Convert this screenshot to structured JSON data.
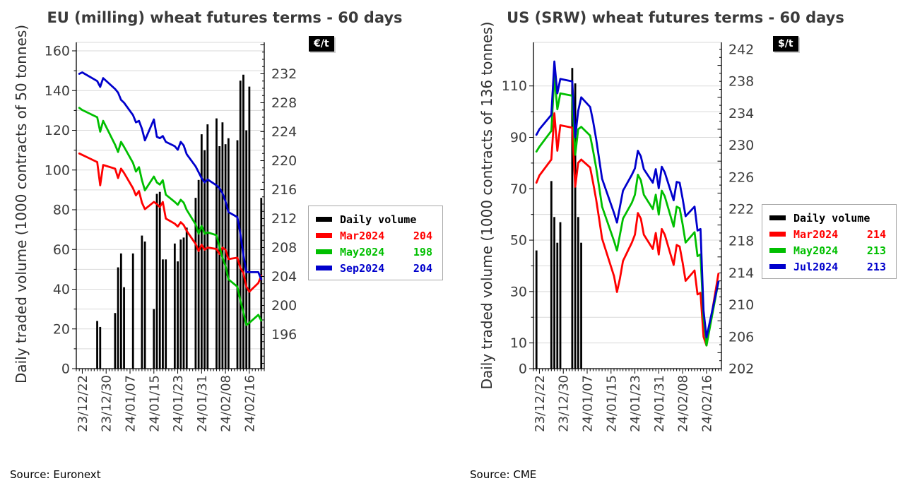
{
  "chart_data": [
    {
      "type": "line+bar",
      "title": "EU (milling) wheat futures terms - 60 days",
      "unit_badge": "€/t",
      "source": "Source: Euronext",
      "ylabel_left": "Daily traded volume (1000 contracts of 50 tonnes)",
      "y_left_ticks": [
        0,
        20,
        40,
        60,
        80,
        100,
        120,
        140,
        160
      ],
      "y_left_range": [
        0,
        164
      ],
      "y_right_ticks": [
        196,
        200,
        204,
        208,
        212,
        216,
        220,
        224,
        228,
        232
      ],
      "y_right_range": [
        192,
        236
      ],
      "x_tick_labels": [
        "23/12/22",
        "23/12/30",
        "24/01/07",
        "24/01/15",
        "24/01/23",
        "24/01/31",
        "24/02/08",
        "24/02/16"
      ],
      "grid": true,
      "legend_position": "right-middle",
      "legend": [
        {
          "label": "Daily volume",
          "value": "",
          "color": "#000000"
        },
        {
          "label": "Mar2024",
          "value": "204",
          "color": "#ff0000"
        },
        {
          "label": "May2024",
          "value": "198",
          "color": "#00bf00"
        },
        {
          "label": "Sep2024",
          "value": "204",
          "color": "#0000cc"
        }
      ],
      "dates": [
        "23/12/21",
        "23/12/22",
        "23/12/27",
        "23/12/28",
        "23/12/29",
        "24/01/02",
        "24/01/03",
        "24/01/04",
        "24/01/05",
        "24/01/08",
        "24/01/09",
        "24/01/10",
        "24/01/11",
        "24/01/12",
        "24/01/15",
        "24/01/16",
        "24/01/17",
        "24/01/18",
        "24/01/19",
        "24/01/22",
        "24/01/23",
        "24/01/24",
        "24/01/25",
        "24/01/26",
        "24/01/29",
        "24/01/30",
        "24/01/31",
        "24/02/01",
        "24/02/02",
        "24/02/05",
        "24/02/06",
        "24/02/07",
        "24/02/08",
        "24/02/09",
        "24/02/12",
        "24/02/13",
        "24/02/14",
        "24/02/15",
        "24/02/16",
        "24/02/19",
        "24/02/20"
      ],
      "volume": {
        "name": "Daily volume",
        "color": "#000000",
        "values": [
          0,
          0,
          24,
          21,
          0,
          28,
          51,
          58,
          41,
          58,
          0,
          0,
          67,
          64,
          30,
          88,
          89,
          55,
          55,
          63,
          54,
          65,
          66,
          71,
          86,
          95,
          118,
          110,
          123,
          126,
          112,
          124,
          113,
          116,
          115,
          145,
          148,
          120,
          142,
          0,
          86
        ]
      },
      "series": [
        {
          "name": "Mar2024",
          "last": "204",
          "color": "#ff0000",
          "values": [
            221.0,
            220.8,
            219.8,
            216.6,
            219.4,
            218.9,
            217.6,
            218.9,
            218.3,
            216.2,
            215.2,
            215.8,
            214.2,
            213.3,
            214.3,
            214.0,
            213.6,
            214.3,
            212.0,
            211.3,
            210.9,
            211.5,
            211.1,
            210.3,
            208.5,
            207.5,
            208.4,
            207.7,
            208.0,
            207.8,
            207.1,
            208.0,
            207.7,
            206.4,
            206.6,
            205.2,
            204.5,
            202.6,
            201.9,
            203.1,
            204.1
          ]
        },
        {
          "name": "May2024",
          "last": "198",
          "color": "#00bf00",
          "values": [
            227.3,
            227.0,
            226.0,
            224.0,
            225.5,
            222.2,
            221.2,
            222.6,
            221.9,
            219.7,
            218.5,
            219.1,
            217.3,
            215.9,
            217.8,
            217.0,
            216.7,
            217.3,
            215.3,
            214.3,
            213.9,
            214.6,
            214.2,
            213.2,
            211.2,
            209.9,
            211.0,
            209.9,
            210.1,
            209.7,
            208.1,
            206.6,
            205.5,
            203.6,
            202.6,
            200.7,
            199.1,
            197.3,
            197.6,
            198.7,
            197.9
          ]
        },
        {
          "name": "Sep2024",
          "last": "204",
          "color": "#0000cc",
          "values": [
            232.0,
            232.2,
            231.0,
            230.2,
            231.4,
            229.9,
            229.4,
            228.4,
            228.0,
            226.3,
            225.3,
            225.5,
            224.4,
            222.8,
            225.7,
            223.3,
            223.1,
            223.4,
            222.6,
            222.0,
            221.5,
            222.6,
            222.1,
            220.9,
            219.2,
            218.4,
            217.6,
            217.0,
            217.4,
            216.6,
            216.2,
            215.5,
            214.4,
            212.9,
            212.2,
            209.9,
            207.0,
            204.6,
            204.6,
            204.6,
            203.6
          ]
        }
      ]
    },
    {
      "type": "line+bar",
      "title": "US (SRW) wheat futures terms - 60 days",
      "unit_badge": "$/t",
      "source": "Source: CME",
      "ylabel_left": "Daily traded volume (1000 contracts of 136 tonnes)",
      "y_left_ticks": [
        0,
        10,
        30,
        50,
        70,
        90,
        110
      ],
      "y_left_range": [
        0,
        127
      ],
      "y_right_ticks": [
        202,
        206,
        210,
        214,
        218,
        222,
        226,
        230,
        234,
        238,
        242
      ],
      "y_right_range": [
        202,
        242
      ],
      "x_tick_labels": [
        "23/12/22",
        "23/12/30",
        "24/01/07",
        "24/01/15",
        "24/01/23",
        "24/01/31",
        "24/02/08",
        "24/02/16"
      ],
      "grid": true,
      "legend_position": "right-middle",
      "legend": [
        {
          "label": "Daily volume",
          "value": "",
          "color": "#000000"
        },
        {
          "label": "Mar2024",
          "value": "214",
          "color": "#ff0000"
        },
        {
          "label": "May2024",
          "value": "213",
          "color": "#00bf00"
        },
        {
          "label": "Jul2024",
          "value": "213",
          "color": "#0000cc"
        }
      ],
      "dates": [
        "23/12/21",
        "23/12/22",
        "23/12/26",
        "23/12/27",
        "23/12/28",
        "23/12/29",
        "24/01/02",
        "24/01/03",
        "24/01/04",
        "24/01/05",
        "24/01/08",
        "24/01/09",
        "24/01/10",
        "24/01/11",
        "24/01/12",
        "24/01/16",
        "24/01/17",
        "24/01/18",
        "24/01/19",
        "24/01/22",
        "24/01/23",
        "24/01/24",
        "24/01/25",
        "24/01/26",
        "24/01/29",
        "24/01/30",
        "24/01/31",
        "24/02/01",
        "24/02/02",
        "24/02/05",
        "24/02/06",
        "24/02/07",
        "24/02/08",
        "24/02/09",
        "24/02/12",
        "24/02/13",
        "24/02/14",
        "24/02/15",
        "24/02/16",
        "24/02/20"
      ],
      "volume": {
        "name": "Daily volume",
        "color": "#000000",
        "values": [
          46,
          0,
          73,
          59,
          49,
          57,
          117,
          111,
          59,
          49,
          0,
          0,
          0,
          0,
          0,
          0,
          0,
          0,
          0,
          0,
          0,
          0,
          0,
          0,
          0,
          0,
          0,
          0,
          0,
          0,
          0,
          0,
          0,
          0,
          0,
          0,
          0,
          0,
          0,
          0
        ]
      },
      "series": [
        {
          "name": "Mar2024",
          "last": "214",
          "color": "#ff0000",
          "values": [
            225.3,
            226.2,
            228.2,
            234.0,
            229.3,
            232.5,
            232.2,
            224.8,
            227.8,
            228.2,
            227.2,
            225.3,
            223.2,
            220.8,
            218.3,
            213.6,
            211.6,
            213.3,
            215.5,
            217.8,
            218.8,
            221.5,
            220.8,
            218.8,
            217.0,
            219.0,
            216.3,
            219.5,
            218.8,
            215.0,
            217.5,
            217.3,
            215.3,
            213.0,
            214.3,
            211.3,
            211.5,
            206.0,
            204.9,
            213.9
          ]
        },
        {
          "name": "May2024",
          "last": "213",
          "color": "#00bf00",
          "values": [
            229.2,
            229.8,
            231.8,
            238.7,
            234.5,
            236.5,
            236.2,
            228.8,
            232.0,
            232.3,
            231.2,
            229.3,
            227.2,
            224.8,
            222.3,
            218.0,
            216.8,
            218.8,
            220.8,
            222.8,
            223.8,
            226.3,
            225.6,
            223.8,
            222.0,
            223.8,
            221.3,
            224.3,
            223.6,
            219.8,
            222.3,
            222.1,
            220.1,
            217.8,
            219.1,
            216.1,
            216.3,
            208.4,
            204.9,
            212.9
          ]
        },
        {
          "name": "Jul2024",
          "last": "213",
          "color": "#0000cc",
          "values": [
            231.3,
            232.0,
            233.8,
            240.5,
            236.5,
            238.3,
            238.0,
            231.0,
            234.3,
            236.0,
            234.8,
            233.0,
            230.8,
            228.3,
            225.8,
            221.5,
            220.3,
            222.3,
            224.3,
            226.3,
            227.1,
            229.3,
            228.6,
            227.0,
            225.3,
            227.0,
            224.6,
            227.3,
            226.6,
            223.1,
            225.4,
            225.3,
            223.3,
            221.1,
            222.3,
            219.3,
            219.5,
            209.3,
            205.9,
            212.9
          ]
        }
      ]
    }
  ],
  "style": {
    "grid_color": "#d9d9d9",
    "axis_color": "#000000",
    "tick_text_color": "#3d3d3d",
    "title_color": "#3a3a3a"
  }
}
